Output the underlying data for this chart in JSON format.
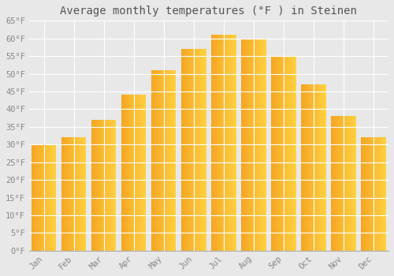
{
  "title": "Average monthly temperatures (°F ) in Steinen",
  "months": [
    "Jan",
    "Feb",
    "Mar",
    "Apr",
    "May",
    "Jun",
    "Jul",
    "Aug",
    "Sep",
    "Oct",
    "Nov",
    "Dec"
  ],
  "values": [
    30,
    32,
    37,
    44,
    51,
    57,
    61,
    60,
    55,
    47,
    38,
    32
  ],
  "bar_color_left": "#F5A623",
  "bar_color_right": "#FFD040",
  "ylim": [
    0,
    65
  ],
  "yticks": [
    0,
    5,
    10,
    15,
    20,
    25,
    30,
    35,
    40,
    45,
    50,
    55,
    60,
    65
  ],
  "ytick_labels": [
    "0°F",
    "5°F",
    "10°F",
    "15°F",
    "20°F",
    "25°F",
    "30°F",
    "35°F",
    "40°F",
    "45°F",
    "50°F",
    "55°F",
    "60°F",
    "65°F"
  ],
  "background_color": "#e8e8e8",
  "plot_bg_color": "#e8e8e8",
  "grid_color": "#ffffff",
  "title_fontsize": 10,
  "tick_fontsize": 7.5,
  "bar_width": 0.82
}
